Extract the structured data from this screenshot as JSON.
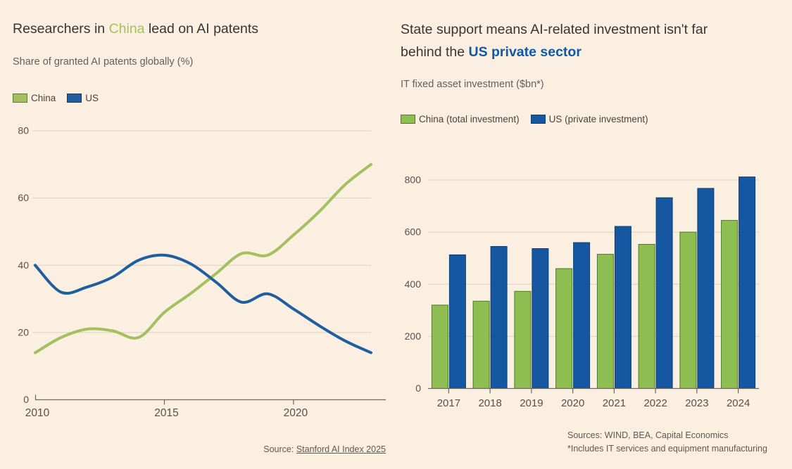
{
  "colors": {
    "background": "#fbefe1",
    "title_text": "#3a352f",
    "muted_text": "#66605a",
    "legend_text": "#4a443c",
    "axis_label": "#57514a",
    "gridline": "#ddd0be",
    "axis_line": "#6e675e",
    "source_text": "#60594f",
    "green_accent": "#a3c25a",
    "blue_accent": "#0f5aa7"
  },
  "left_panel": {
    "title_pre": "Researchers in ",
    "title_accent": "China",
    "title_post": " lead on AI patents",
    "subtitle": "Share of granted AI patents globally (%)",
    "source_prefix": "Source: ",
    "source_link": "Stanford AI Index 2025"
  },
  "right_panel": {
    "title_line1": "State support means AI-related investment isn't far",
    "title_line2_pre": "behind the ",
    "title_accent": "US private sector",
    "subtitle": "IT fixed asset investment ($bn*)",
    "sources_line1": "Sources: WIND, BEA, Capital Economics",
    "sources_line2": "*Includes IT services and equipment manufacturing"
  },
  "chart_data": [
    {
      "type": "line",
      "title": "Researchers in China lead on AI patents",
      "subtitle": "Share of granted AI patents globally (%)",
      "x": [
        2010,
        2011,
        2012,
        2013,
        2014,
        2015,
        2016,
        2017,
        2018,
        2019,
        2020,
        2021,
        2022,
        2023
      ],
      "series": [
        {
          "name": "China",
          "color": "#a2c15e",
          "border": "#5d7a33",
          "values": [
            14,
            18.5,
            21,
            20.5,
            18.5,
            26,
            31.5,
            37.5,
            43.5,
            43,
            49,
            56,
            64,
            70
          ]
        },
        {
          "name": "US",
          "color": "#1f5fa0",
          "border": "#0c3b6e",
          "values": [
            40,
            32,
            33.5,
            36.5,
            41.5,
            43,
            40.5,
            35,
            29,
            31.5,
            27,
            22,
            17.5,
            14
          ]
        }
      ],
      "ylim": [
        0,
        80
      ],
      "yticks": [
        0,
        20,
        40,
        60,
        80
      ],
      "xticks": [
        2010,
        2015,
        2020
      ],
      "grid": "horizontal",
      "legend_position": "top-left",
      "source": "Source: Stanford AI Index 2025"
    },
    {
      "type": "bar",
      "title": "State support means AI-related investment isn't far behind the US private sector",
      "subtitle": "IT fixed asset investment ($bn*)",
      "categories": [
        "2017",
        "2018",
        "2019",
        "2020",
        "2021",
        "2022",
        "2023",
        "2024"
      ],
      "series": [
        {
          "name": "China (total investment)",
          "color": "#8ebd51",
          "border": "#4f7a28",
          "values": [
            320,
            335,
            373,
            460,
            515,
            553,
            600,
            645
          ]
        },
        {
          "name": "US (private investment)",
          "color": "#1558a1",
          "border": "#0d4176",
          "values": [
            513,
            545,
            537,
            560,
            622,
            732,
            768,
            812
          ]
        }
      ],
      "ylim": [
        0,
        850
      ],
      "yticks": [
        0,
        200,
        400,
        600,
        800
      ],
      "grid": "horizontal",
      "legend_position": "top-left",
      "sources": "Sources: WIND, BEA, Capital Economics; *Includes IT services and equipment manufacturing"
    }
  ]
}
